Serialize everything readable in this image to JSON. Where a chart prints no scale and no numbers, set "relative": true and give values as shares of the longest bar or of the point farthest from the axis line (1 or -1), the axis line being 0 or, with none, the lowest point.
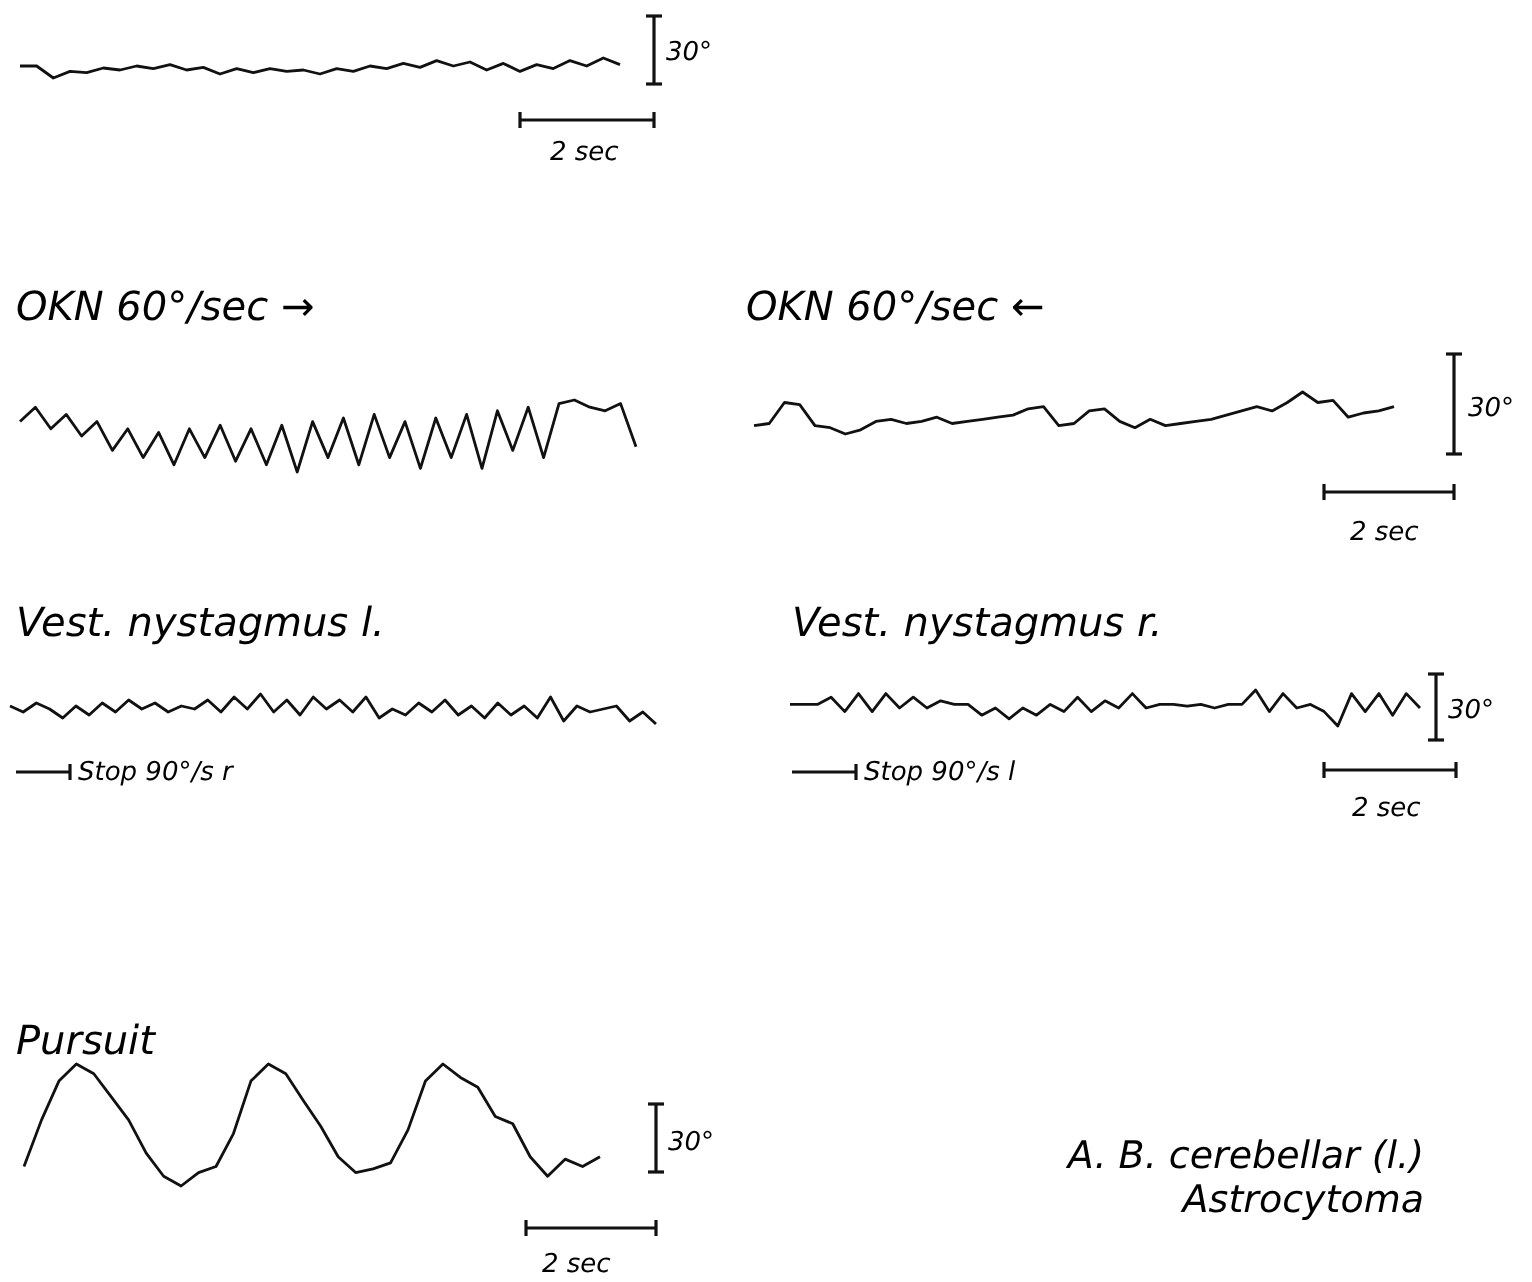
{
  "chart_data": [
    {
      "type": "line",
      "relative": true,
      "annotations": [
        "30°",
        "2 sec"
      ],
      "categories": [
        null,
        null,
        null,
        null,
        null,
        null,
        null,
        null,
        null,
        null,
        null,
        null,
        null,
        null,
        null,
        null,
        null,
        null,
        null,
        null,
        null,
        null,
        null,
        null,
        null,
        null,
        null,
        null,
        null,
        null,
        null,
        null,
        null,
        null,
        null,
        null,
        null
      ],
      "series": [
        {
          "color": "#111111",
          "values": [
            0.6,
            0.6,
            0,
            0.33,
            0.27,
            0.5,
            0.4,
            0.6,
            0.47,
            0.67,
            0.4,
            0.53,
            0.2,
            0.47,
            0.27,
            0.47,
            0.33,
            0.4,
            0.2,
            0.47,
            0.33,
            0.6,
            0.47,
            0.73,
            0.53,
            0.87,
            0.6,
            0.8,
            0.4,
            0.73,
            0.33,
            0.67,
            0.47,
            0.87,
            0.6,
            1,
            0.67
          ]
        }
      ]
    },
    {
      "type": "line",
      "relative": true,
      "title": "OKN 60°/sec →",
      "categories": [
        null,
        null,
        null,
        null,
        null,
        null,
        null,
        null,
        null,
        null,
        null,
        null,
        null,
        null,
        null,
        null,
        null,
        null,
        null,
        null,
        null,
        null,
        null,
        null,
        null,
        null,
        null,
        null,
        null,
        null,
        null,
        null,
        null,
        null,
        null,
        null,
        null,
        null,
        null,
        null,
        null
      ],
      "series": [
        {
          "color": "#111111",
          "values": [
            0.7,
            0.9,
            0.6,
            0.8,
            0.5,
            0.7,
            0.3,
            0.6,
            0.2,
            0.55,
            0.1,
            0.6,
            0.2,
            0.65,
            0.15,
            0.6,
            0.1,
            0.65,
            0,
            0.7,
            0.2,
            0.75,
            0.1,
            0.8,
            0.2,
            0.7,
            0.05,
            0.75,
            0.2,
            0.8,
            0.05,
            0.85,
            0.3,
            0.9,
            0.2,
            0.95,
            1,
            0.9,
            0.85,
            0.95,
            0.35
          ]
        }
      ]
    },
    {
      "type": "line",
      "relative": true,
      "title": "OKN 60°/sec ←",
      "annotations": [
        "30°",
        "2 sec"
      ],
      "categories": [
        null,
        null,
        null,
        null,
        null,
        null,
        null,
        null,
        null,
        null,
        null,
        null,
        null,
        null,
        null,
        null,
        null,
        null,
        null,
        null,
        null,
        null,
        null,
        null,
        null,
        null,
        null,
        null,
        null,
        null,
        null,
        null,
        null,
        null,
        null,
        null,
        null,
        null,
        null,
        null,
        null,
        null,
        null
      ],
      "series": [
        {
          "color": "#111111",
          "values": [
            0.2,
            0.25,
            0.75,
            0.7,
            0.2,
            0.15,
            0,
            0.1,
            0.3,
            0.35,
            0.25,
            0.3,
            0.4,
            0.25,
            0.3,
            0.35,
            0.4,
            0.45,
            0.6,
            0.65,
            0.2,
            0.25,
            0.55,
            0.6,
            0.3,
            0.15,
            0.35,
            0.2,
            0.25,
            0.3,
            0.35,
            0.45,
            0.55,
            0.65,
            0.55,
            0.75,
            1,
            0.75,
            0.8,
            0.4,
            0.5,
            0.55,
            0.65
          ]
        }
      ]
    },
    {
      "type": "line",
      "relative": true,
      "title": "Vest. nystagmus l.",
      "annotations": [
        "Stop 90°/s r"
      ],
      "categories": [
        null,
        null,
        null,
        null,
        null,
        null,
        null,
        null,
        null,
        null,
        null,
        null,
        null,
        null,
        null,
        null,
        null,
        null,
        null,
        null,
        null,
        null,
        null,
        null,
        null,
        null,
        null,
        null,
        null,
        null,
        null,
        null,
        null,
        null,
        null,
        null,
        null,
        null,
        null,
        null,
        null,
        null,
        null,
        null,
        null,
        null,
        null,
        null,
        null,
        null
      ],
      "series": [
        {
          "color": "#111111",
          "values": [
            0.6,
            0.4,
            0.7,
            0.5,
            0.2,
            0.6,
            0.3,
            0.7,
            0.4,
            0.8,
            0.5,
            0.7,
            0.4,
            0.6,
            0.5,
            0.8,
            0.4,
            0.9,
            0.5,
            1,
            0.4,
            0.8,
            0.3,
            0.9,
            0.5,
            0.8,
            0.4,
            0.9,
            0.2,
            0.5,
            0.3,
            0.7,
            0.4,
            0.8,
            0.3,
            0.6,
            0.2,
            0.7,
            0.3,
            0.6,
            0.2,
            0.9,
            0.1,
            0.6,
            0.4,
            0.5,
            0.6,
            0.1,
            0.4,
            0
          ]
        }
      ]
    },
    {
      "type": "line",
      "relative": true,
      "title": "Vest. nystagmus r.",
      "annotations": [
        "30°",
        "Stop 90°/s l",
        "2 sec"
      ],
      "categories": [
        null,
        null,
        null,
        null,
        null,
        null,
        null,
        null,
        null,
        null,
        null,
        null,
        null,
        null,
        null,
        null,
        null,
        null,
        null,
        null,
        null,
        null,
        null,
        null,
        null,
        null,
        null,
        null,
        null,
        null,
        null,
        null,
        null,
        null,
        null,
        null,
        null,
        null,
        null,
        null,
        null,
        null,
        null,
        null,
        null,
        null,
        null
      ],
      "series": [
        {
          "color": "#111111",
          "values": [
            0.6,
            0.6,
            0.6,
            0.8,
            0.4,
            0.9,
            0.4,
            0.9,
            0.5,
            0.8,
            0.5,
            0.7,
            0.6,
            0.6,
            0.3,
            0.5,
            0.2,
            0.5,
            0.3,
            0.6,
            0.4,
            0.8,
            0.4,
            0.7,
            0.5,
            0.9,
            0.5,
            0.6,
            0.6,
            0.55,
            0.6,
            0.5,
            0.6,
            0.6,
            1,
            0.4,
            0.9,
            0.5,
            0.6,
            0.4,
            0,
            0.9,
            0.4,
            0.9,
            0.3,
            0.9,
            0.5
          ]
        }
      ]
    },
    {
      "type": "line",
      "relative": true,
      "title": "Pursuit",
      "annotations": [
        "30°",
        "2 sec",
        "A. B. cerebellar (l.)",
        "Astrocytoma"
      ],
      "categories": [
        null,
        null,
        null,
        null,
        null,
        null,
        null,
        null,
        null,
        null,
        null,
        null,
        null,
        null,
        null,
        null,
        null,
        null,
        null,
        null,
        null,
        null,
        null,
        null,
        null,
        null,
        null,
        null,
        null,
        null,
        null,
        null,
        null,
        null
      ],
      "series": [
        {
          "color": "#111111",
          "values": [
            0.16,
            0.54,
            0.86,
            1,
            0.92,
            0.73,
            0.54,
            0.27,
            0.08,
            0,
            0.11,
            0.16,
            0.43,
            0.86,
            1,
            0.92,
            0.7,
            0.49,
            0.24,
            0.11,
            0.14,
            0.19,
            0.46,
            0.86,
            1,
            0.89,
            0.81,
            0.57,
            0.51,
            0.24,
            0.08,
            0.22,
            0.16,
            0.24
          ]
        }
      ]
    }
  ]
}
